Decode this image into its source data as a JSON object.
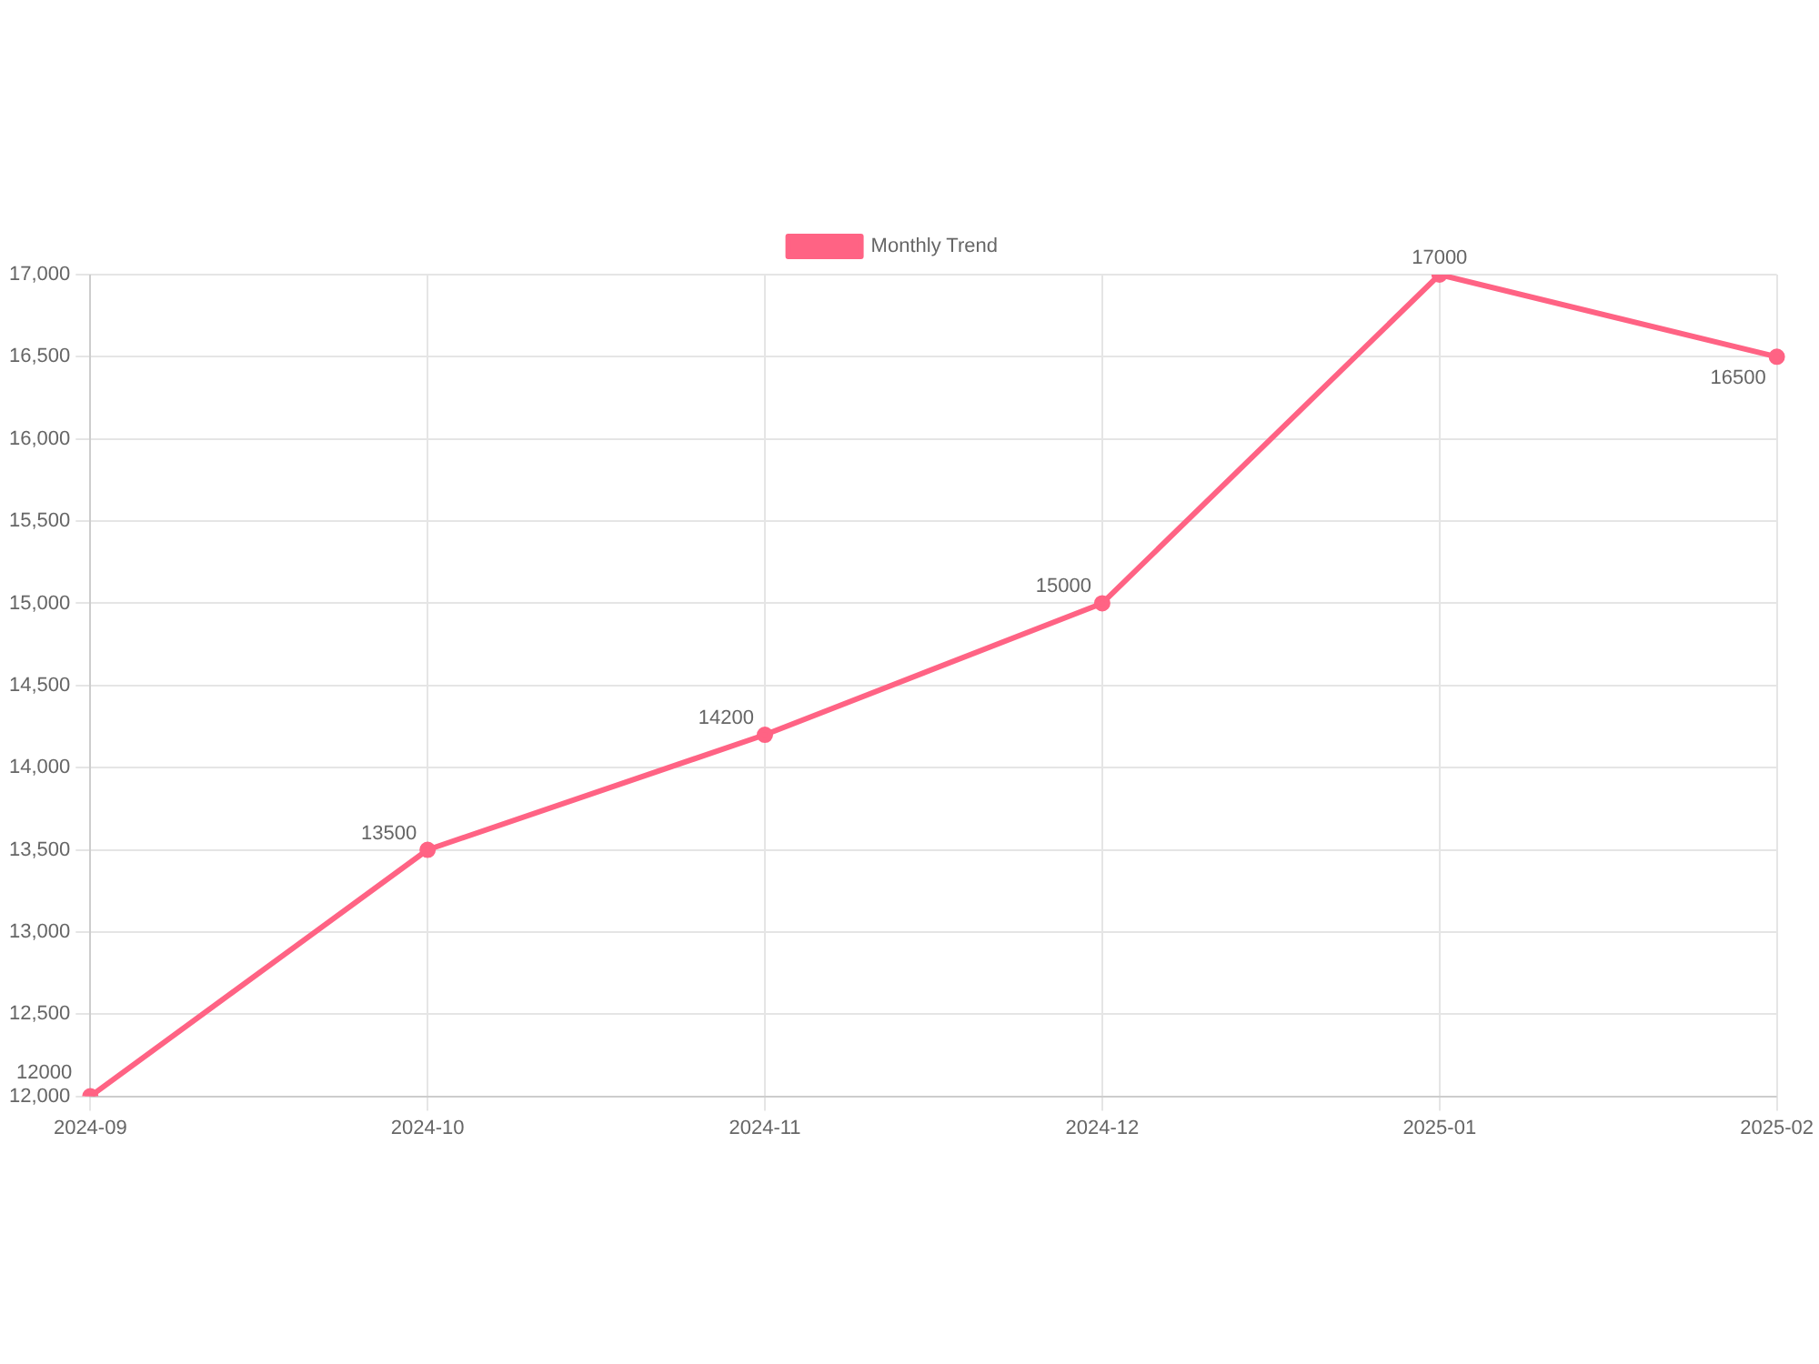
{
  "chart_data": {
    "type": "line",
    "categories": [
      "2024-09",
      "2024-10",
      "2024-11",
      "2024-12",
      "2025-01",
      "2025-02"
    ],
    "series": [
      {
        "name": "Monthly Trend",
        "color": "#ff6384",
        "values": [
          12000,
          13500,
          14200,
          15000,
          17000,
          16500
        ]
      }
    ],
    "ylim": [
      12000,
      17000
    ],
    "yticks": [
      {
        "value": 12000,
        "label": "12,000"
      },
      {
        "value": 12500,
        "label": "12,500"
      },
      {
        "value": 13000,
        "label": "13,000"
      },
      {
        "value": 13500,
        "label": "13,500"
      },
      {
        "value": 14000,
        "label": "14,000"
      },
      {
        "value": 14500,
        "label": "14,500"
      },
      {
        "value": 15000,
        "label": "15,000"
      },
      {
        "value": 15500,
        "label": "15,500"
      },
      {
        "value": 16000,
        "label": "16,000"
      },
      {
        "value": 16500,
        "label": "16,500"
      },
      {
        "value": 17000,
        "label": "17,000"
      }
    ],
    "grid": true,
    "legend": "top",
    "marker": "circle",
    "line_style": "solid",
    "data_labels": true
  }
}
